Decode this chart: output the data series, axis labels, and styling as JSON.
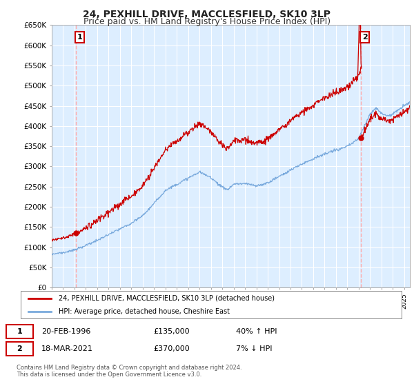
{
  "title": "24, PEXHILL DRIVE, MACCLESFIELD, SK10 3LP",
  "subtitle": "Price paid vs. HM Land Registry's House Price Index (HPI)",
  "ylabel_ticks": [
    "£0",
    "£50K",
    "£100K",
    "£150K",
    "£200K",
    "£250K",
    "£300K",
    "£350K",
    "£400K",
    "£450K",
    "£500K",
    "£550K",
    "£600K",
    "£650K"
  ],
  "ytick_values": [
    0,
    50000,
    100000,
    150000,
    200000,
    250000,
    300000,
    350000,
    400000,
    450000,
    500000,
    550000,
    600000,
    650000
  ],
  "ylim": [
    0,
    650000
  ],
  "xlim_start": 1994.0,
  "xlim_end": 2025.5,
  "price_paid_color": "#cc0000",
  "hpi_color": "#7aaadd",
  "vline_color": "#ffaaaa",
  "point1_x": 1996.13,
  "point1_y": 135000,
  "point2_x": 2021.21,
  "point2_y": 370000,
  "legend_line1": "24, PEXHILL DRIVE, MACCLESFIELD, SK10 3LP (detached house)",
  "legend_line2": "HPI: Average price, detached house, Cheshire East",
  "background_color": "#ffffff",
  "plot_bg_color": "#ddeeff",
  "grid_color": "#ffffff",
  "title_fontsize": 10,
  "subtitle_fontsize": 9
}
